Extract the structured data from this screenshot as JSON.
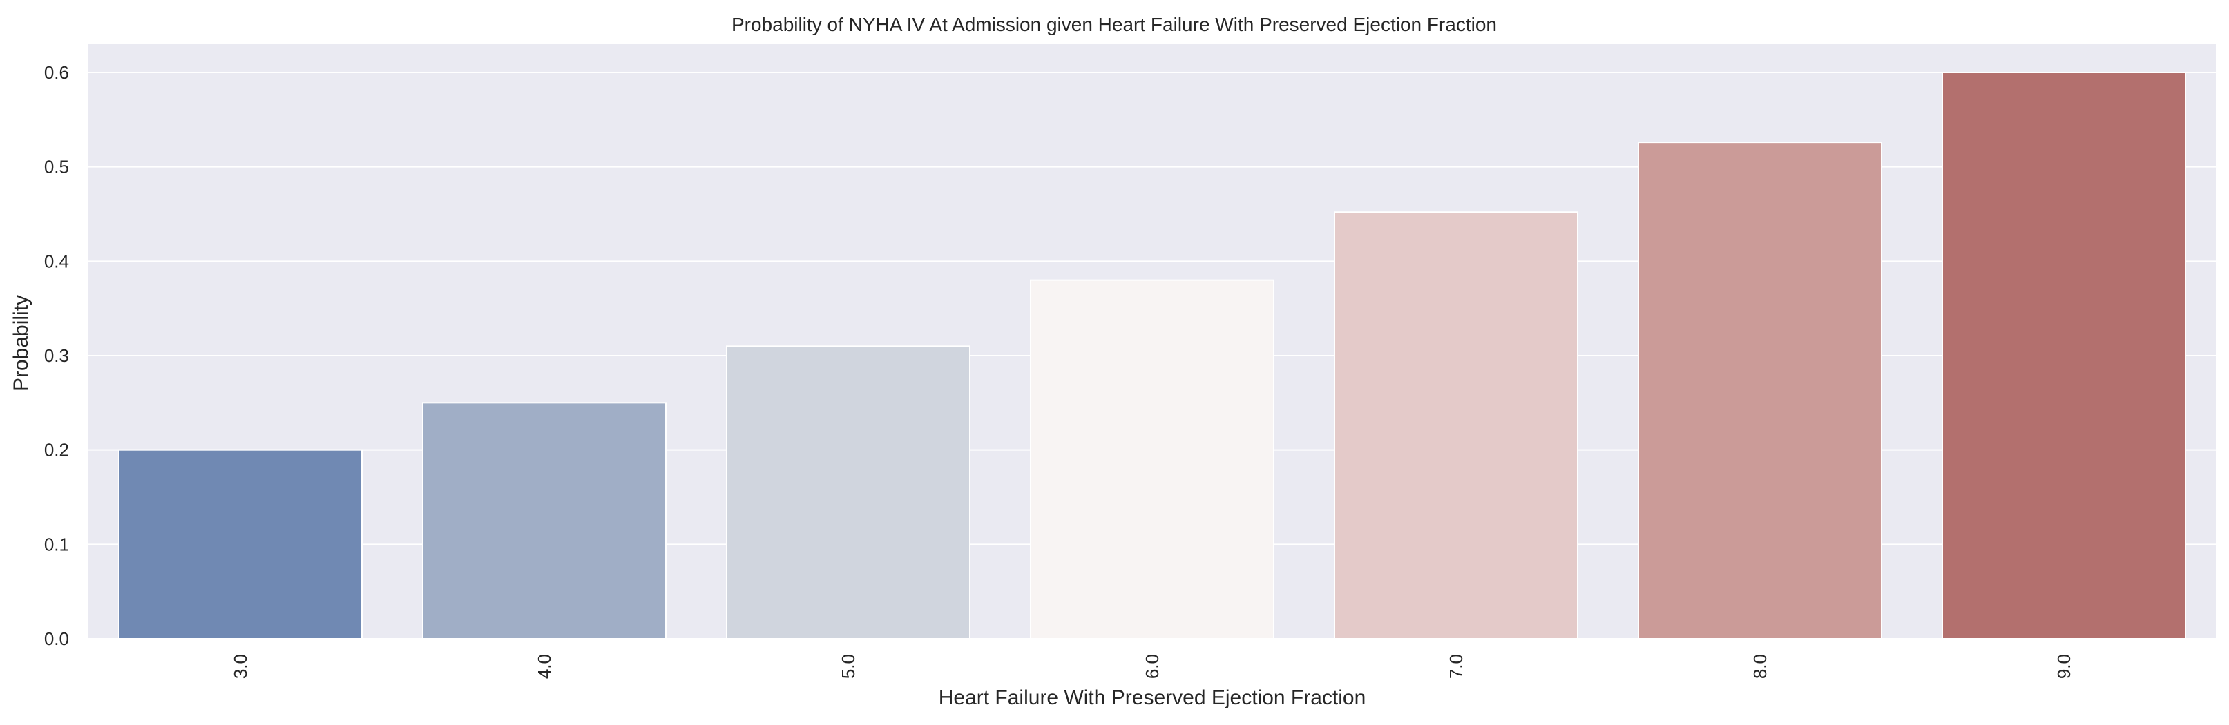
{
  "chart_data": {
    "type": "bar",
    "title": "Probability of NYHA IV At Admission given Heart Failure With Preserved Ejection Fraction",
    "xlabel": "Heart Failure With Preserved Ejection Fraction",
    "ylabel": "Probability",
    "categories": [
      "3.0",
      "4.0",
      "5.0",
      "6.0",
      "7.0",
      "8.0",
      "9.0"
    ],
    "values": [
      0.2,
      0.25,
      0.31,
      0.38,
      0.452,
      0.526,
      0.6
    ],
    "ylim": [
      0,
      0.63
    ],
    "yticks": [
      "0.0",
      "0.1",
      "0.2",
      "0.3",
      "0.4",
      "0.5",
      "0.6"
    ],
    "grid": true,
    "colors": [
      "#7089b3",
      "#a0aec6",
      "#d0d5de",
      "#f8f4f3",
      "#e4cac9",
      "#cb9b98",
      "#b3706e"
    ],
    "background_color": "#eaeaf2"
  }
}
